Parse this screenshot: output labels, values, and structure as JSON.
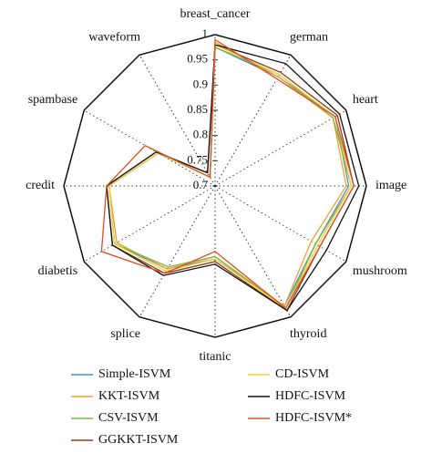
{
  "chart_data": {
    "type": "radar",
    "categories": [
      "breast_cancer",
      "german",
      "heart",
      "image",
      "mushroom",
      "thyroid",
      "titanic",
      "splice",
      "diabetis",
      "credit",
      "spambase",
      "waveform"
    ],
    "ylim": [
      0.7,
      1
    ],
    "yticks": [
      0.7,
      0.75,
      0.8,
      0.85,
      0.9,
      0.95,
      1
    ],
    "series": [
      {
        "name": "Simple-ISVM",
        "color": "#4a8fc8",
        "values": [
          0.975,
          0.95,
          0.975,
          0.965,
          0.93,
          0.975,
          0.845,
          0.89,
          0.93,
          0.91,
          0.83,
          0.72
        ]
      },
      {
        "name": "KKT-ISVM",
        "color": "#f0a030",
        "values": [
          0.985,
          0.95,
          0.97,
          0.96,
          0.92,
          0.975,
          0.84,
          0.89,
          0.925,
          0.91,
          0.83,
          0.72
        ]
      },
      {
        "name": "CSV-ISVM",
        "color": "#7dbb3c",
        "values": [
          0.975,
          0.955,
          0.97,
          0.97,
          0.93,
          0.98,
          0.84,
          0.885,
          0.93,
          0.91,
          0.83,
          0.72
        ]
      },
      {
        "name": "GGKKT-ISVM",
        "color": "#8b3a1a",
        "values": [
          0.98,
          0.96,
          0.98,
          0.975,
          0.94,
          0.985,
          0.85,
          0.9,
          0.935,
          0.915,
          0.835,
          0.73
        ]
      },
      {
        "name": "CD-ISVM",
        "color": "#f5d040",
        "values": [
          0.98,
          0.955,
          0.975,
          0.97,
          0.935,
          0.98,
          0.845,
          0.895,
          0.93,
          0.91,
          0.83,
          0.72
        ]
      },
      {
        "name": "HDFC-ISVM",
        "color": "#111111",
        "values": [
          0.98,
          0.98,
          0.985,
          0.985,
          0.955,
          0.985,
          0.855,
          0.905,
          0.935,
          0.915,
          0.835,
          0.73
        ]
      },
      {
        "name": "HDFC-ISVM*",
        "color": "#e05020",
        "values": [
          0.99,
          0.945,
          0.975,
          0.975,
          0.94,
          0.98,
          0.83,
          0.9,
          0.96,
          0.915,
          0.86,
          0.72
        ]
      }
    ]
  }
}
